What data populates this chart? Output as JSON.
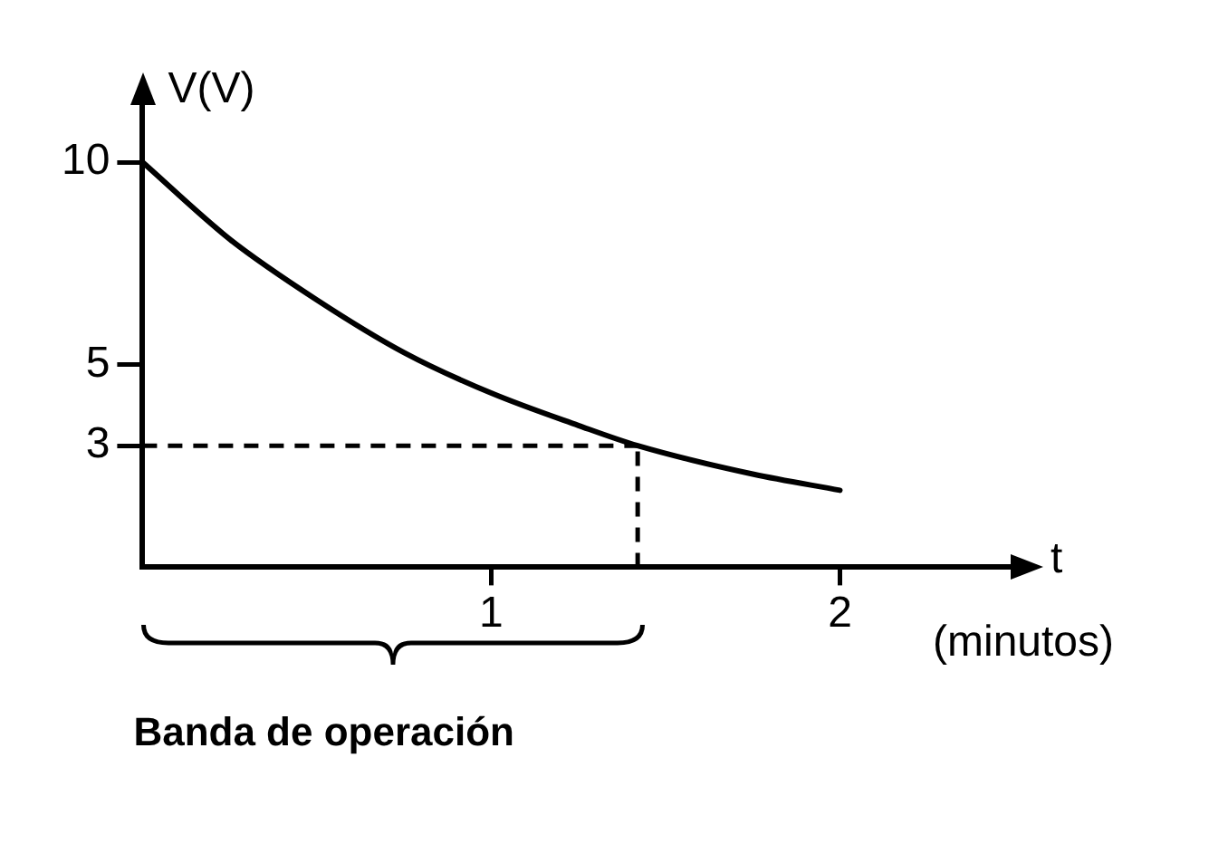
{
  "chart_data": {
    "type": "line",
    "xlabel": "t",
    "ylabel": "V(V)",
    "annotations": [
      "(minutos)",
      "Banda de operación"
    ],
    "x": [
      0,
      0.25,
      0.5,
      0.75,
      1,
      1.25,
      1.42,
      1.75,
      2
    ],
    "series": [
      {
        "color": "#000000",
        "values": [
          10,
          8.1,
          6.6,
          5.3,
          4.3,
          3.5,
          3,
          2.3,
          1.9
        ]
      }
    ],
    "ref_lines": [
      {
        "axis": "y",
        "value": 3,
        "color": "#000000",
        "line_style": "dashed"
      },
      {
        "axis": "x",
        "value": 1.42,
        "color": "#000000",
        "line_style": "dashed"
      }
    ],
    "xlim": [
      0,
      2.5
    ],
    "ylim": [
      0,
      11.5
    ],
    "xticks": [
      1,
      2
    ],
    "yticks": [
      3,
      5,
      10
    ],
    "grid": false,
    "legend": false,
    "marker": "none"
  }
}
